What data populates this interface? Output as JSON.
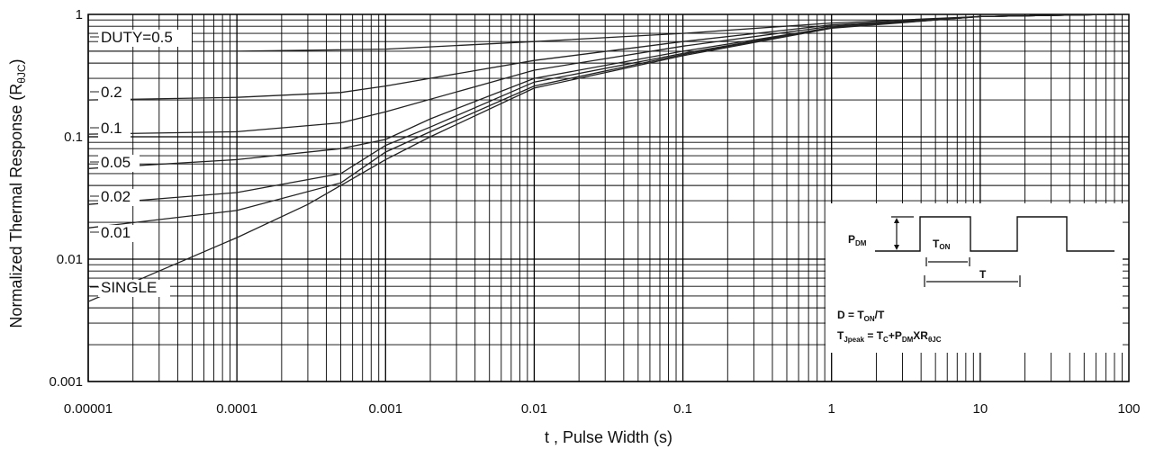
{
  "chart_data": {
    "type": "line",
    "x_scale": "log",
    "y_scale": "log",
    "xlim": [
      1e-05,
      100
    ],
    "ylim": [
      0.001,
      1
    ],
    "grid": true,
    "xlabel": "t , Pulse Width (s)",
    "ylabel_main": "Normalized Thermal Response (R",
    "ylabel_sub": "θJC",
    "ylabel_close": ")",
    "x_ticks": [
      {
        "value": 1e-05,
        "label": "0.00001"
      },
      {
        "value": 0.0001,
        "label": "0.0001"
      },
      {
        "value": 0.001,
        "label": "0.001"
      },
      {
        "value": 0.01,
        "label": "0.01"
      },
      {
        "value": 0.1,
        "label": "0.1"
      },
      {
        "value": 1,
        "label": "1"
      },
      {
        "value": 10,
        "label": "10"
      },
      {
        "value": 100,
        "label": "100"
      }
    ],
    "y_ticks": [
      {
        "value": 1,
        "label": "1"
      },
      {
        "value": 0.1,
        "label": "0.1"
      },
      {
        "value": 0.01,
        "label": "0.01"
      },
      {
        "value": 0.001,
        "label": "0.001"
      }
    ],
    "series": [
      {
        "name": "DUTY=0.5",
        "x": [
          1e-05,
          0.0001,
          0.001,
          0.01,
          0.1,
          1,
          10,
          80
        ],
        "y": [
          0.5,
          0.5,
          0.52,
          0.6,
          0.7,
          0.85,
          0.96,
          1.0
        ]
      },
      {
        "name": "0.2",
        "x": [
          1e-05,
          0.0001,
          0.0005,
          0.001,
          0.01,
          0.1,
          1,
          10,
          80
        ],
        "y": [
          0.2,
          0.21,
          0.23,
          0.26,
          0.42,
          0.6,
          0.82,
          0.96,
          1.0
        ]
      },
      {
        "name": "0.1",
        "x": [
          1e-05,
          0.0001,
          0.0005,
          0.001,
          0.01,
          0.1,
          1,
          10,
          80
        ],
        "y": [
          0.105,
          0.11,
          0.13,
          0.16,
          0.35,
          0.55,
          0.8,
          0.96,
          1.0
        ]
      },
      {
        "name": "0.05",
        "x": [
          1e-05,
          0.0001,
          0.0005,
          0.001,
          0.002,
          0.01,
          0.1,
          1,
          10,
          80
        ],
        "y": [
          0.055,
          0.065,
          0.08,
          0.095,
          0.14,
          0.3,
          0.5,
          0.78,
          0.96,
          1.0
        ]
      },
      {
        "name": "0.02",
        "x": [
          1e-05,
          0.0001,
          0.0005,
          0.001,
          0.002,
          0.01,
          0.1,
          1,
          10,
          80
        ],
        "y": [
          0.028,
          0.035,
          0.05,
          0.085,
          0.12,
          0.28,
          0.48,
          0.78,
          0.96,
          1.0
        ]
      },
      {
        "name": "0.01",
        "x": [
          1e-05,
          0.0001,
          0.0005,
          0.001,
          0.002,
          0.01,
          0.1,
          1,
          10,
          80
        ],
        "y": [
          0.018,
          0.025,
          0.042,
          0.075,
          0.11,
          0.26,
          0.47,
          0.78,
          0.96,
          1.0
        ]
      },
      {
        "name": "SINGLE",
        "x": [
          1e-05,
          3e-05,
          0.0001,
          0.0003,
          0.0005,
          0.001,
          0.002,
          0.01,
          0.1,
          1,
          10,
          80
        ],
        "y": [
          0.0045,
          0.008,
          0.015,
          0.028,
          0.04,
          0.065,
          0.1,
          0.25,
          0.46,
          0.77,
          0.96,
          1.0
        ]
      }
    ],
    "curve_labels": [
      {
        "text": "DUTY=0.5",
        "series": 0
      },
      {
        "text": "0.2",
        "series": 1
      },
      {
        "text": "0.1",
        "series": 2
      },
      {
        "text": "0.05",
        "series": 3
      },
      {
        "text": "0.02",
        "series": 4
      },
      {
        "text": "0.01",
        "series": 5
      },
      {
        "text": "SINGLE",
        "series": 6
      }
    ],
    "inset": {
      "p_dm": "P",
      "p_dm_sub": "DM",
      "t_on": "T",
      "t_on_sub": "ON",
      "t_period": "T",
      "formula1_a": "D = T",
      "formula1_sub": "ON",
      "formula1_b": "/T",
      "formula2_a": "T",
      "formula2_sub1": "Jpeak",
      "formula2_b": " = T",
      "formula2_sub2": "C",
      "formula2_c": "+P",
      "formula2_sub3": "DM",
      "formula2_d": "XR",
      "formula2_sub4": "θJC"
    }
  }
}
